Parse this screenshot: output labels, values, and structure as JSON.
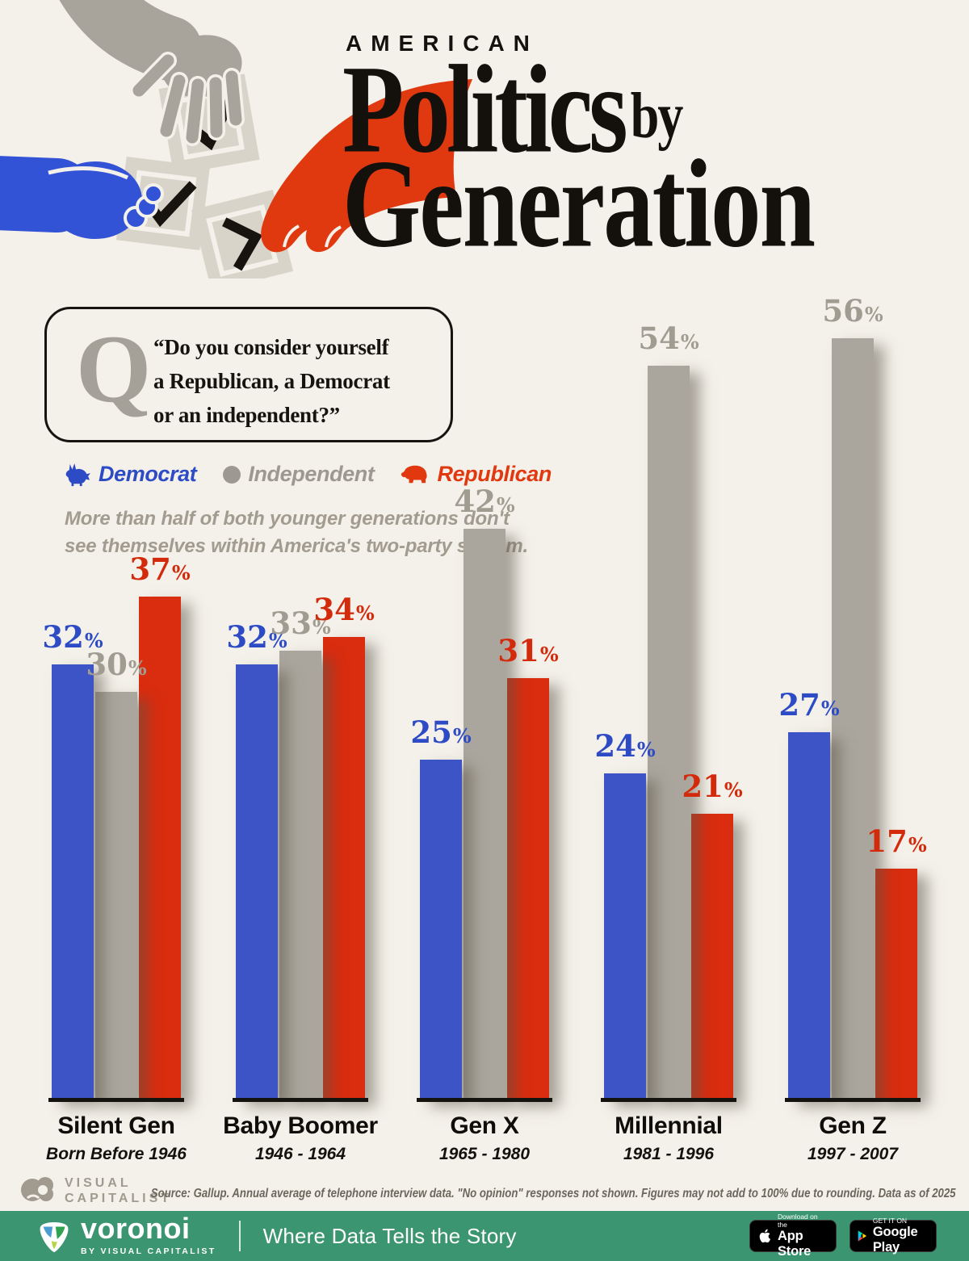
{
  "header": {
    "kicker": "AMERICAN",
    "title_line1": "Politics",
    "title_by": "by",
    "title_line2": "Generation"
  },
  "question": {
    "mark": "Q",
    "lines": [
      "“Do you consider yourself",
      "a Republican, a Democrat",
      "or an independent?”"
    ]
  },
  "legend": {
    "items": [
      {
        "label": "Democrat",
        "color": "#2e4bc6",
        "icon": "donkey-icon"
      },
      {
        "label": "Independent",
        "color": "#9d9890",
        "icon": "circle-icon"
      },
      {
        "label": "Republican",
        "color": "#e2380f",
        "icon": "elephant-icon"
      }
    ]
  },
  "subtitle": [
    "More than half of both younger generations don't",
    "see themselves within America's two-party system."
  ],
  "chart_data": {
    "type": "bar",
    "categories": [
      "Silent Gen",
      "Baby Boomer",
      "Gen X",
      "Millennial",
      "Gen Z"
    ],
    "category_ranges": [
      "Born Before 1946",
      "1946 - 1964",
      "1965 - 1980",
      "1981 - 1996",
      "1997 - 2007"
    ],
    "series": [
      {
        "name": "Democrat",
        "color": "#3c54c6",
        "label_color": "#2e4bc6",
        "values": [
          32,
          32,
          25,
          24,
          27
        ]
      },
      {
        "name": "Independent",
        "color": "#aaa69d",
        "label_color": "#a19c91",
        "values": [
          30,
          33,
          42,
          54,
          56
        ]
      },
      {
        "name": "Republican",
        "color": "#da2c0f",
        "label_color": "#d32a0c",
        "values": [
          37,
          34,
          31,
          21,
          17
        ]
      }
    ],
    "unit": "%",
    "ylim": [
      0,
      60
    ],
    "grid": false,
    "legend_position": "top-left",
    "value_labels": true
  },
  "footer": {
    "vc_logo": [
      "VISUAL",
      "CAPITALIST"
    ],
    "source": "Source: Gallup. Annual average of telephone interview data. \"No opinion\" responses not shown. Figures may not add to 100% due to rounding. Data as of 2025",
    "brand": {
      "name": "voronoi",
      "by": "BY VISUAL CAPITALIST",
      "tagline": "Where Data Tells the Story"
    },
    "badges": {
      "appstore": {
        "top": "Download on the",
        "bottom": "App Store"
      },
      "gplay": {
        "top": "GET IT ON",
        "bottom": "Google Play"
      }
    }
  }
}
